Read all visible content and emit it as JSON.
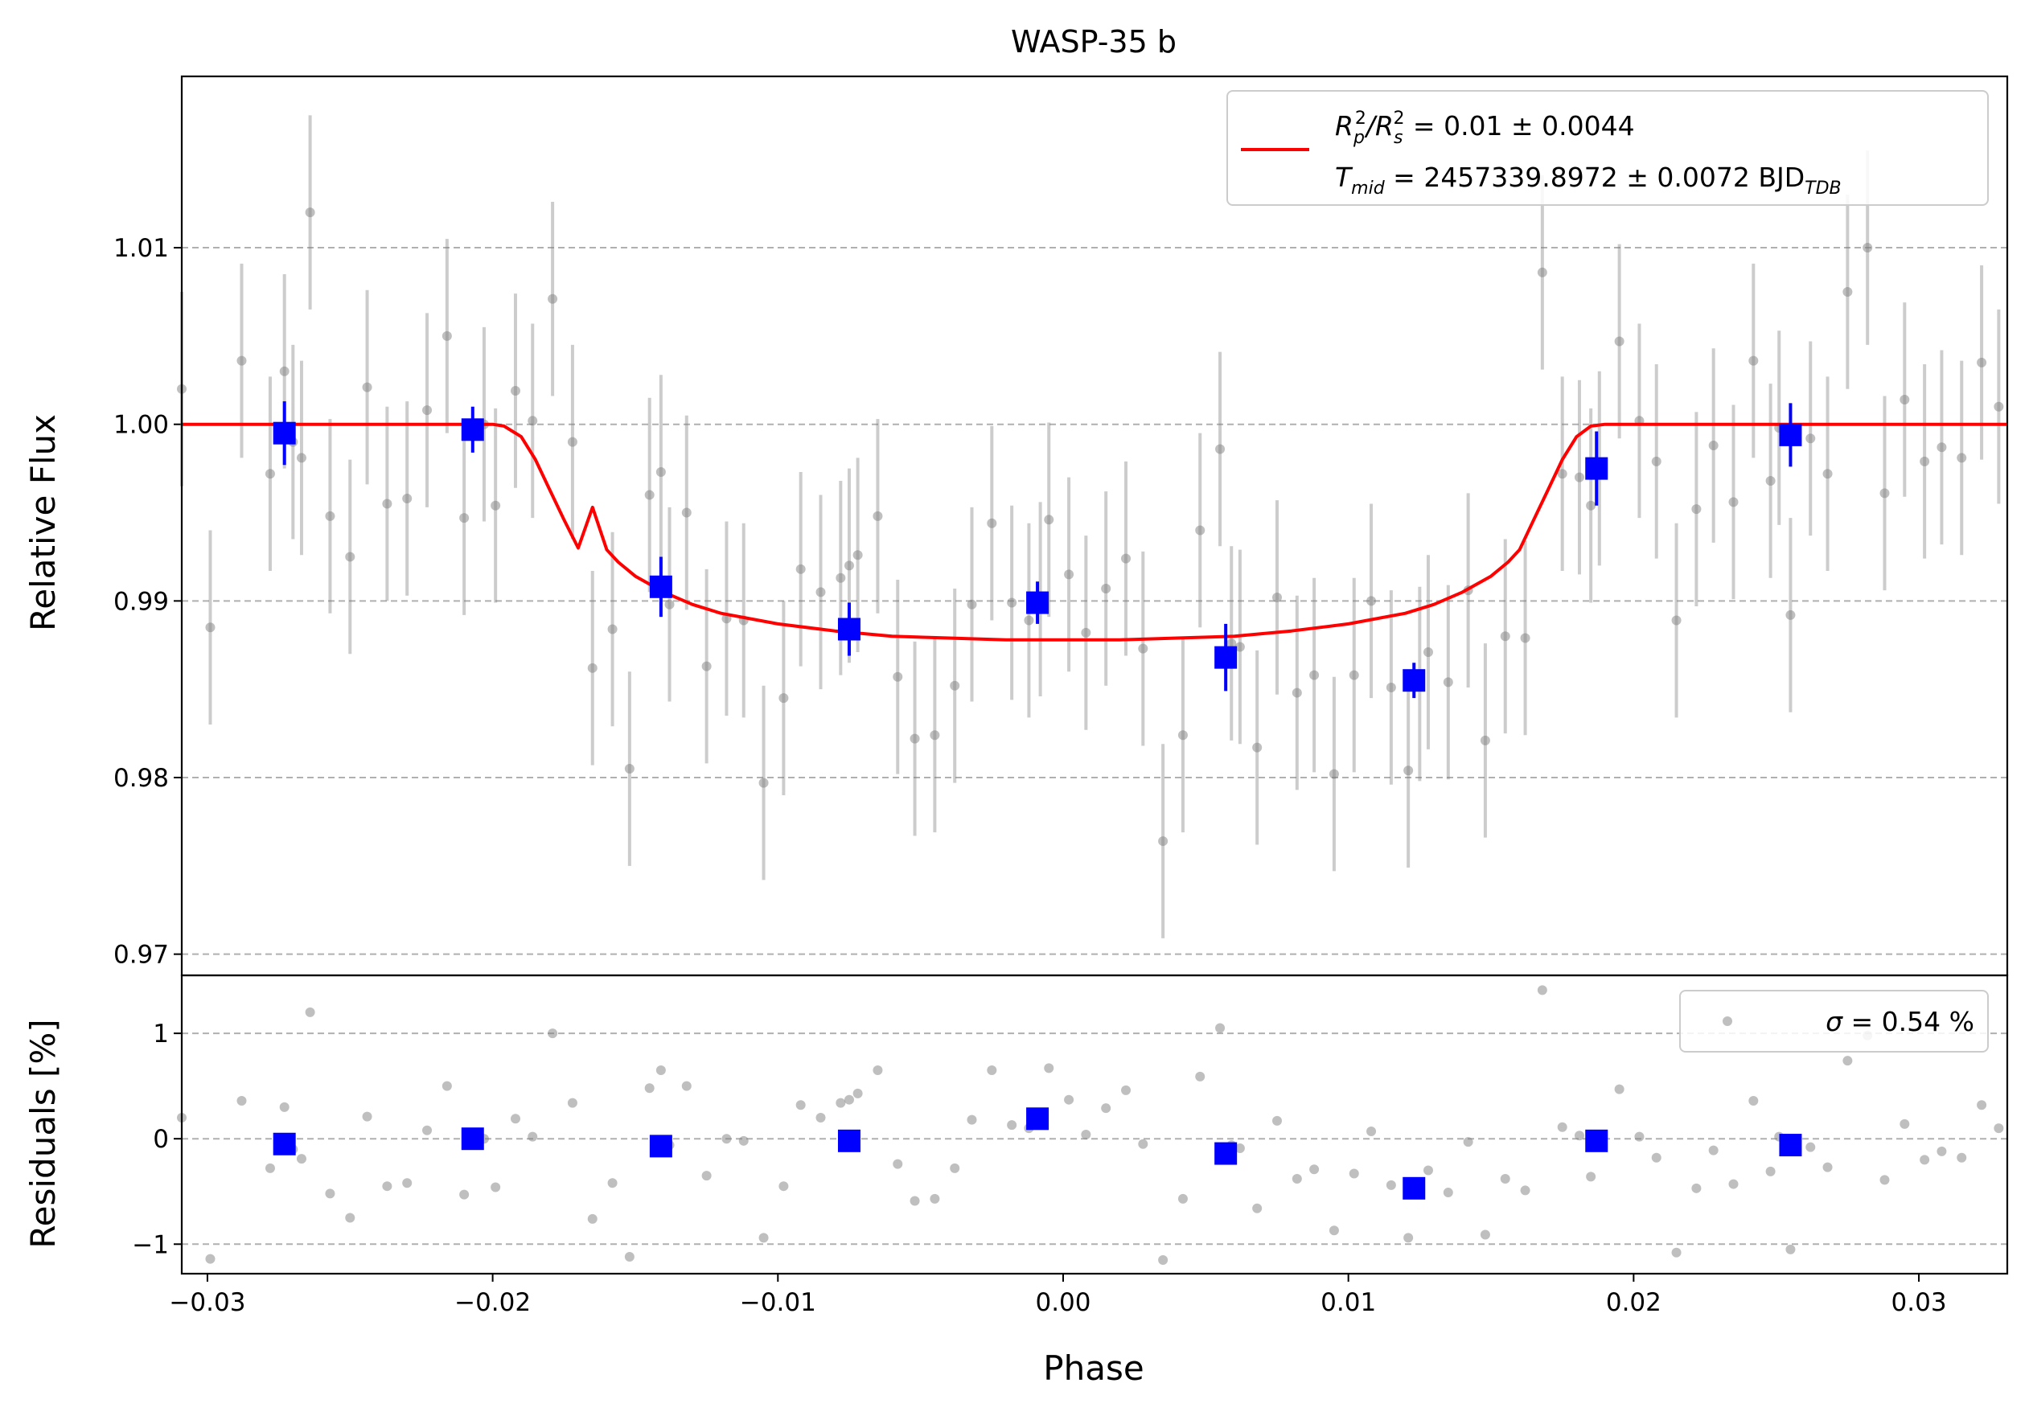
{
  "chart_data": [
    {
      "type": "scatter",
      "title": "WASP-35 b",
      "xlabel": "Phase",
      "ylabel": "Relative Flux",
      "xlim": [
        -0.0309,
        0.0331
      ],
      "ylim": [
        0.9688,
        1.0197
      ],
      "grid": "y-dashed",
      "legend_placement": "top-right",
      "xticks": [
        "−0.03",
        "−0.02",
        "−0.01",
        "0.00",
        "0.01",
        "0.02",
        "0.03"
      ],
      "xtick_values": [
        -0.03,
        -0.02,
        -0.01,
        0.0,
        0.01,
        0.02,
        0.03
      ],
      "yticks": [
        "0.97",
        "0.98",
        "0.99",
        "1.00",
        "1.01"
      ],
      "ytick_values": [
        0.97,
        0.98,
        0.99,
        1.0,
        1.01
      ],
      "legend": {
        "line1": {
          "pre": "R",
          "sub1": "p",
          "sup1": "2",
          "mid": "/R",
          "sub2": "s",
          "sup2": "2",
          "post": " = 0.01 ± 0.0044"
        },
        "line2": {
          "pre": "T",
          "sub1": "mid",
          "mid": " = 2457339.8972 ± 0.0072 BJD",
          "sub2": "TDB"
        },
        "line_color": "#ff0000"
      },
      "raw_points": {
        "color": "#808080",
        "x": [
          -0.0309,
          -0.0299,
          -0.0288,
          -0.0278,
          -0.0273,
          -0.027,
          -0.0267,
          -0.0264,
          -0.0257,
          -0.025,
          -0.0244,
          -0.0237,
          -0.023,
          -0.0223,
          -0.0216,
          -0.021,
          -0.0203,
          -0.0199,
          -0.0192,
          -0.0186,
          -0.0179,
          -0.0172,
          -0.0165,
          -0.0158,
          -0.0152,
          -0.0145,
          -0.0141,
          -0.0138,
          -0.0132,
          -0.0125,
          -0.0118,
          -0.0112,
          -0.0105,
          -0.0098,
          -0.0092,
          -0.0085,
          -0.0078,
          -0.0075,
          -0.0072,
          -0.0065,
          -0.0058,
          -0.0052,
          -0.0045,
          -0.0038,
          -0.0032,
          -0.0025,
          -0.0018,
          -0.0012,
          -0.0008,
          -0.0005,
          0.0002,
          0.0008,
          0.0015,
          0.0022,
          0.0028,
          0.0035,
          0.0042,
          0.0048,
          0.0055,
          0.0059,
          0.0062,
          0.0068,
          0.0075,
          0.0082,
          0.0088,
          0.0095,
          0.0102,
          0.0108,
          0.0115,
          0.0121,
          0.0125,
          0.0128,
          0.0135,
          0.0142,
          0.0148,
          0.0155,
          0.0162,
          0.0168,
          0.0175,
          0.0181,
          0.0185,
          0.0188,
          0.0195,
          0.0202,
          0.0208,
          0.0215,
          0.0222,
          0.0228,
          0.0235,
          0.0242,
          0.0248,
          0.0251,
          0.0255,
          0.0262,
          0.0268,
          0.0275,
          0.0282,
          0.0288,
          0.0295,
          0.0302,
          0.0308,
          0.0315,
          0.0322,
          0.0328
        ],
        "y": [
          1.002,
          0.9885,
          1.0036,
          0.9972,
          1.003,
          0.999,
          0.9981,
          1.012,
          0.9948,
          0.9925,
          1.0021,
          0.9955,
          0.9958,
          1.0008,
          1.005,
          0.9947,
          1.0,
          0.9954,
          1.0019,
          1.0002,
          1.0071,
          0.999,
          0.9862,
          0.9884,
          0.9805,
          0.996,
          0.9973,
          0.9898,
          0.995,
          0.9863,
          0.989,
          0.9889,
          0.9797,
          0.9845,
          0.9918,
          0.9905,
          0.9913,
          0.992,
          0.9926,
          0.9948,
          0.9857,
          0.9822,
          0.9824,
          0.9852,
          0.9898,
          0.9944,
          0.9899,
          0.9889,
          0.9901,
          0.9946,
          0.9915,
          0.9882,
          0.9907,
          0.9924,
          0.9873,
          0.9764,
          0.9824,
          0.994,
          0.9986,
          0.9876,
          0.9874,
          0.9817,
          0.9902,
          0.9848,
          0.9858,
          0.9802,
          0.9858,
          0.99,
          0.9851,
          0.9804,
          0.9853,
          0.9871,
          0.9854,
          0.9906,
          0.9821,
          0.988,
          0.9879,
          1.0086,
          0.9972,
          0.997,
          0.9954,
          0.9975,
          1.0047,
          1.0002,
          0.9979,
          0.9889,
          0.9952,
          0.9988,
          0.9956,
          1.0036,
          0.9968,
          0.9998,
          0.9892,
          0.9992,
          0.9972,
          1.0075,
          1.01,
          0.9961,
          1.0014,
          0.9979,
          0.9987,
          0.9981,
          1.0035,
          1.001
        ],
        "err": [
          0.0055,
          0.0055,
          0.0055,
          0.0055,
          0.0055,
          0.0055,
          0.0055,
          0.0055,
          0.0055,
          0.0055,
          0.0055,
          0.0055,
          0.0055,
          0.0055,
          0.0055,
          0.0055,
          0.0055,
          0.0055,
          0.0055,
          0.0055,
          0.0055,
          0.0055,
          0.0055,
          0.0055,
          0.0055,
          0.0055,
          0.0055,
          0.0055,
          0.0055,
          0.0055,
          0.0055,
          0.0055,
          0.0055,
          0.0055,
          0.0055,
          0.0055,
          0.0055,
          0.0055,
          0.0055,
          0.0055,
          0.0055,
          0.0055,
          0.0055,
          0.0055,
          0.0055,
          0.0055,
          0.0055,
          0.0055,
          0.0055,
          0.0055,
          0.0055,
          0.0055,
          0.0055,
          0.0055,
          0.0055,
          0.0055,
          0.0055,
          0.0055,
          0.0055,
          0.0055,
          0.0055,
          0.0055,
          0.0055,
          0.0055,
          0.0055,
          0.0055,
          0.0055,
          0.0055,
          0.0055,
          0.0055,
          0.0055,
          0.0055,
          0.0055,
          0.0055,
          0.0055,
          0.0055,
          0.0055,
          0.0055,
          0.0055,
          0.0055,
          0.0055,
          0.0055,
          0.0055,
          0.0055,
          0.0055,
          0.0055,
          0.0055,
          0.0055,
          0.0055,
          0.0055,
          0.0055,
          0.0055,
          0.0055,
          0.0055,
          0.0055,
          0.0055,
          0.0055,
          0.0055,
          0.0055,
          0.0055,
          0.0055,
          0.0055,
          0.0055,
          0.0055
        ]
      },
      "binned_points": {
        "color": "#0000ff",
        "x": [
          -0.0273,
          -0.0207,
          -0.0141,
          -0.0075,
          -0.0009,
          0.0057,
          0.0123,
          0.0187,
          0.0255
        ],
        "y": [
          0.9995,
          0.9997,
          0.9908,
          0.9884,
          0.9899,
          0.9868,
          0.9855,
          0.9975,
          0.9994
        ],
        "err": [
          0.0018,
          0.0013,
          0.0017,
          0.0015,
          0.0012,
          0.0019,
          0.001,
          0.0021,
          0.0018
        ]
      },
      "model": {
        "color": "#ff0000",
        "x": [
          -0.0309,
          -0.02,
          -0.0196,
          -0.019,
          -0.0185,
          -0.018,
          -0.0175,
          -0.017,
          -0.0165,
          -0.016,
          -0.0156,
          -0.015,
          -0.014,
          -0.013,
          -0.012,
          -0.01,
          -0.008,
          -0.006,
          -0.004,
          -0.002,
          0.0,
          0.002,
          0.004,
          0.006,
          0.008,
          0.01,
          0.012,
          0.013,
          0.014,
          0.015,
          0.0156,
          0.016,
          0.0165,
          0.017,
          0.0175,
          0.018,
          0.0185,
          0.019,
          0.0196,
          0.02,
          0.0331
        ],
        "y": [
          1.0,
          1.0,
          0.9999,
          0.9993,
          0.998,
          0.9963,
          0.9946,
          0.993,
          0.9953,
          0.9929,
          0.9922,
          0.9914,
          0.9905,
          0.9898,
          0.9893,
          0.9887,
          0.9883,
          0.988,
          0.9879,
          0.9878,
          0.9878,
          0.9878,
          0.9879,
          0.988,
          0.9883,
          0.9887,
          0.9893,
          0.9898,
          0.9905,
          0.9914,
          0.9922,
          0.9929,
          0.9946,
          0.9963,
          0.998,
          0.9993,
          0.9999,
          1.0,
          1.0,
          1.0,
          1.0
        ]
      }
    },
    {
      "type": "scatter",
      "xlabel": "Phase",
      "ylabel": "Residuals [%]",
      "xlim": [
        -0.0309,
        0.0331
      ],
      "ylim": [
        -1.28,
        1.55
      ],
      "grid": "y-dashed",
      "legend_placement": "top-right",
      "yticks": [
        "−1",
        "0",
        "1"
      ],
      "ytick_values": [
        -1,
        0,
        1
      ],
      "legend": {
        "sigma": "σ",
        "text": " = 0.54 %"
      },
      "raw_residuals": {
        "color": "#808080",
        "y": [
          0.2,
          -1.14,
          0.36,
          -0.28,
          0.3,
          -0.1,
          -0.19,
          1.2,
          -0.52,
          -0.75,
          0.21,
          -0.45,
          -0.42,
          0.08,
          0.5,
          -0.53,
          0.0,
          -0.46,
          0.19,
          0.02,
          1.0,
          0.34,
          -0.76,
          -0.42,
          -1.12,
          0.48,
          0.65,
          -0.06,
          0.5,
          -0.35,
          0.0,
          -0.02,
          -0.94,
          -0.45,
          0.32,
          0.2,
          0.34,
          0.37,
          0.43,
          0.65,
          -0.24,
          -0.59,
          -0.57,
          -0.28,
          0.18,
          0.65,
          0.13,
          0.1,
          0.23,
          0.67,
          0.37,
          0.04,
          0.29,
          0.46,
          -0.05,
          -1.15,
          -0.57,
          0.59,
          1.05,
          -0.06,
          -0.09,
          -0.66,
          0.17,
          -0.38,
          -0.29,
          -0.87,
          -0.33,
          0.07,
          -0.44,
          -0.94,
          -0.45,
          -0.3,
          -0.51,
          -0.03,
          -0.91,
          -0.38,
          -0.49,
          1.41,
          0.11,
          0.03,
          -0.36,
          0.0,
          0.47,
          0.02,
          -0.18,
          -1.08,
          -0.47,
          -0.11,
          -0.43,
          0.36,
          -0.31,
          0.02,
          -1.05,
          -0.08,
          -0.27,
          0.74,
          0.98,
          -0.39,
          0.14,
          -0.2,
          -0.12,
          -0.18,
          0.32,
          0.1
        ]
      },
      "binned_residuals": {
        "color": "#0000ff",
        "y": [
          -0.05,
          0.0,
          -0.07,
          -0.02,
          0.19,
          -0.14,
          -0.47,
          -0.02,
          -0.06
        ]
      }
    }
  ]
}
